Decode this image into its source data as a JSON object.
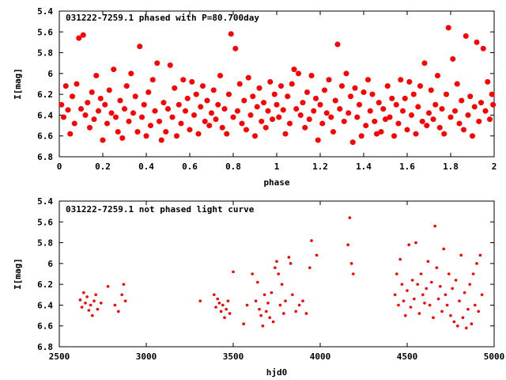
{
  "chart_data": [
    {
      "type": "scatter",
      "title": "031222-7259.1 phased with P=80.700day",
      "xlabel": "phase",
      "ylabel": "I[mag]",
      "xlim": [
        0,
        2
      ],
      "ylim": [
        6.8,
        5.4
      ],
      "y_inverted": true,
      "x_ticks": [
        "0",
        "0.2",
        "0.4",
        "0.6",
        "0.8",
        "1",
        "1.2",
        "1.4",
        "1.6",
        "1.8",
        "2"
      ],
      "y_ticks": [
        "5.4",
        "5.6",
        "5.8",
        "6",
        "6.2",
        "6.4",
        "6.6",
        "6.8"
      ],
      "marker": "star",
      "color": "#ff0000",
      "grid": false,
      "points": [
        [
          0.01,
          6.3
        ],
        [
          0.02,
          6.42
        ],
        [
          0.03,
          6.12
        ],
        [
          0.04,
          6.35
        ],
        [
          0.05,
          6.58
        ],
        [
          0.06,
          6.22
        ],
        [
          0.07,
          6.48
        ],
        [
          0.08,
          6.1
        ],
        [
          0.09,
          5.66
        ],
        [
          0.1,
          6.34
        ],
        [
          0.11,
          5.63
        ],
        [
          0.12,
          6.4
        ],
        [
          0.13,
          6.28
        ],
        [
          0.14,
          6.52
        ],
        [
          0.15,
          6.18
        ],
        [
          0.16,
          6.44
        ],
        [
          0.17,
          6.02
        ],
        [
          0.18,
          6.36
        ],
        [
          0.19,
          6.24
        ],
        [
          0.2,
          6.64
        ],
        [
          0.21,
          6.3
        ],
        [
          0.22,
          6.48
        ],
        [
          0.23,
          6.16
        ],
        [
          0.24,
          6.38
        ],
        [
          0.25,
          5.96
        ],
        [
          0.26,
          6.42
        ],
        [
          0.27,
          6.56
        ],
        [
          0.28,
          6.26
        ],
        [
          0.29,
          6.62
        ],
        [
          0.3,
          6.34
        ],
        [
          0.31,
          6.12
        ],
        [
          0.32,
          6.46
        ],
        [
          0.33,
          6.0
        ],
        [
          0.34,
          6.38
        ],
        [
          0.35,
          6.22
        ],
        [
          0.36,
          6.56
        ],
        [
          0.37,
          5.74
        ],
        [
          0.38,
          6.42
        ],
        [
          0.39,
          6.3
        ],
        [
          0.4,
          6.6
        ],
        [
          0.41,
          6.18
        ],
        [
          0.42,
          6.5
        ],
        [
          0.43,
          6.06
        ],
        [
          0.44,
          6.36
        ],
        [
          0.45,
          5.9
        ],
        [
          0.46,
          6.46
        ],
        [
          0.47,
          6.64
        ],
        [
          0.48,
          6.28
        ],
        [
          0.49,
          6.56
        ],
        [
          0.5,
          6.34
        ],
        [
          0.51,
          5.92
        ],
        [
          0.52,
          6.42
        ],
        [
          0.53,
          6.14
        ],
        [
          0.54,
          6.6
        ],
        [
          0.55,
          6.3
        ],
        [
          0.56,
          6.48
        ],
        [
          0.57,
          6.06
        ],
        [
          0.58,
          6.36
        ],
        [
          0.59,
          6.24
        ],
        [
          0.6,
          6.54
        ],
        [
          0.61,
          6.08
        ],
        [
          0.62,
          6.4
        ],
        [
          0.63,
          6.2
        ],
        [
          0.64,
          6.58
        ],
        [
          0.65,
          6.32
        ],
        [
          0.66,
          6.12
        ],
        [
          0.67,
          6.46
        ],
        [
          0.68,
          6.26
        ],
        [
          0.69,
          6.5
        ],
        [
          0.7,
          6.38
        ],
        [
          0.71,
          6.16
        ],
        [
          0.72,
          6.44
        ],
        [
          0.73,
          6.3
        ],
        [
          0.74,
          6.02
        ],
        [
          0.75,
          6.52
        ],
        [
          0.76,
          6.34
        ],
        [
          0.77,
          6.58
        ],
        [
          0.78,
          6.2
        ],
        [
          0.79,
          5.62
        ],
        [
          0.8,
          6.42
        ],
        [
          0.81,
          5.76
        ],
        [
          0.82,
          6.36
        ],
        [
          0.83,
          6.1
        ],
        [
          0.84,
          6.48
        ],
        [
          0.85,
          6.26
        ],
        [
          0.86,
          6.54
        ],
        [
          0.87,
          6.04
        ],
        [
          0.88,
          6.4
        ],
        [
          0.89,
          6.22
        ],
        [
          0.9,
          6.6
        ],
        [
          0.91,
          6.32
        ],
        [
          0.92,
          6.14
        ],
        [
          0.93,
          6.46
        ],
        [
          0.94,
          6.28
        ],
        [
          0.95,
          6.52
        ],
        [
          0.96,
          6.36
        ],
        [
          0.97,
          6.08
        ],
        [
          0.98,
          6.44
        ],
        [
          0.99,
          6.2
        ],
        [
          1.0,
          6.3
        ],
        [
          1.01,
          6.42
        ],
        [
          1.02,
          6.12
        ],
        [
          1.03,
          6.35
        ],
        [
          1.04,
          6.58
        ],
        [
          1.05,
          6.22
        ],
        [
          1.06,
          6.48
        ],
        [
          1.07,
          6.1
        ],
        [
          1.08,
          5.96
        ],
        [
          1.09,
          6.34
        ],
        [
          1.1,
          6.0
        ],
        [
          1.11,
          6.4
        ],
        [
          1.12,
          6.28
        ],
        [
          1.13,
          6.52
        ],
        [
          1.14,
          6.18
        ],
        [
          1.15,
          6.44
        ],
        [
          1.16,
          6.02
        ],
        [
          1.17,
          6.36
        ],
        [
          1.18,
          6.24
        ],
        [
          1.19,
          6.64
        ],
        [
          1.2,
          6.3
        ],
        [
          1.21,
          6.48
        ],
        [
          1.22,
          6.16
        ],
        [
          1.23,
          6.38
        ],
        [
          1.24,
          6.06
        ],
        [
          1.25,
          6.42
        ],
        [
          1.26,
          6.56
        ],
        [
          1.27,
          6.26
        ],
        [
          1.28,
          5.72
        ],
        [
          1.29,
          6.34
        ],
        [
          1.3,
          6.12
        ],
        [
          1.31,
          6.46
        ],
        [
          1.32,
          6.0
        ],
        [
          1.33,
          6.38
        ],
        [
          1.34,
          6.22
        ],
        [
          1.35,
          6.66
        ],
        [
          1.36,
          6.14
        ],
        [
          1.37,
          6.42
        ],
        [
          1.38,
          6.3
        ],
        [
          1.39,
          6.6
        ],
        [
          1.4,
          6.18
        ],
        [
          1.41,
          6.5
        ],
        [
          1.42,
          6.06
        ],
        [
          1.43,
          6.36
        ],
        [
          1.44,
          6.2
        ],
        [
          1.45,
          6.46
        ],
        [
          1.46,
          6.58
        ],
        [
          1.47,
          6.28
        ],
        [
          1.48,
          6.56
        ],
        [
          1.49,
          6.34
        ],
        [
          1.5,
          6.44
        ],
        [
          1.51,
          6.12
        ],
        [
          1.52,
          6.42
        ],
        [
          1.53,
          6.24
        ],
        [
          1.54,
          6.6
        ],
        [
          1.55,
          6.3
        ],
        [
          1.56,
          6.48
        ],
        [
          1.57,
          6.06
        ],
        [
          1.58,
          6.36
        ],
        [
          1.59,
          6.24
        ],
        [
          1.6,
          6.54
        ],
        [
          1.61,
          6.08
        ],
        [
          1.62,
          6.4
        ],
        [
          1.63,
          6.2
        ],
        [
          1.64,
          6.58
        ],
        [
          1.65,
          6.32
        ],
        [
          1.66,
          6.12
        ],
        [
          1.67,
          6.46
        ],
        [
          1.68,
          5.9
        ],
        [
          1.69,
          6.5
        ],
        [
          1.7,
          6.38
        ],
        [
          1.71,
          6.16
        ],
        [
          1.72,
          6.44
        ],
        [
          1.73,
          6.3
        ],
        [
          1.74,
          6.02
        ],
        [
          1.75,
          6.52
        ],
        [
          1.76,
          6.34
        ],
        [
          1.77,
          6.58
        ],
        [
          1.78,
          6.2
        ],
        [
          1.79,
          5.56
        ],
        [
          1.8,
          6.42
        ],
        [
          1.81,
          5.86
        ],
        [
          1.82,
          6.36
        ],
        [
          1.83,
          6.1
        ],
        [
          1.84,
          6.48
        ],
        [
          1.85,
          6.26
        ],
        [
          1.86,
          6.54
        ],
        [
          1.87,
          5.64
        ],
        [
          1.88,
          6.4
        ],
        [
          1.89,
          6.22
        ],
        [
          1.9,
          6.6
        ],
        [
          1.91,
          6.32
        ],
        [
          1.92,
          5.7
        ],
        [
          1.93,
          6.46
        ],
        [
          1.94,
          6.28
        ],
        [
          1.95,
          5.76
        ],
        [
          1.96,
          6.36
        ],
        [
          1.97,
          6.08
        ],
        [
          1.98,
          6.44
        ],
        [
          1.99,
          6.2
        ],
        [
          1.995,
          6.3
        ]
      ]
    },
    {
      "type": "scatter",
      "title": "031222-7259.1 not phased light curve",
      "xlabel": "hjd0",
      "ylabel": "I[mag]",
      "xlim": [
        2500,
        5000
      ],
      "ylim": [
        6.8,
        5.4
      ],
      "y_inverted": true,
      "x_ticks": [
        "2500",
        "3000",
        "3500",
        "4000",
        "4500",
        "5000"
      ],
      "y_ticks": [
        "5.4",
        "5.6",
        "5.8",
        "6",
        "6.2",
        "6.4",
        "6.6",
        "6.8"
      ],
      "marker": "dot",
      "color": "#ff0000",
      "grid": false,
      "points": [
        [
          2620,
          6.35
        ],
        [
          2630,
          6.42
        ],
        [
          2640,
          6.28
        ],
        [
          2650,
          6.38
        ],
        [
          2660,
          6.32
        ],
        [
          2670,
          6.45
        ],
        [
          2680,
          6.4
        ],
        [
          2690,
          6.5
        ],
        [
          2700,
          6.36
        ],
        [
          2710,
          6.3
        ],
        [
          2720,
          6.44
        ],
        [
          2740,
          6.38
        ],
        [
          2780,
          6.22
        ],
        [
          2820,
          6.4
        ],
        [
          2840,
          6.46
        ],
        [
          2860,
          6.3
        ],
        [
          2870,
          6.2
        ],
        [
          2880,
          6.36
        ],
        [
          3310,
          6.36
        ],
        [
          3390,
          6.3
        ],
        [
          3400,
          6.42
        ],
        [
          3410,
          6.34
        ],
        [
          3420,
          6.38
        ],
        [
          3430,
          6.46
        ],
        [
          3440,
          6.4
        ],
        [
          3450,
          6.52
        ],
        [
          3460,
          6.44
        ],
        [
          3470,
          6.36
        ],
        [
          3480,
          6.48
        ],
        [
          3500,
          6.08
        ],
        [
          3560,
          6.58
        ],
        [
          3580,
          6.4
        ],
        [
          3610,
          6.1
        ],
        [
          3630,
          6.36
        ],
        [
          3640,
          6.18
        ],
        [
          3650,
          6.44
        ],
        [
          3660,
          6.5
        ],
        [
          3670,
          6.6
        ],
        [
          3680,
          6.3
        ],
        [
          3690,
          6.46
        ],
        [
          3700,
          6.38
        ],
        [
          3710,
          6.52
        ],
        [
          3720,
          6.28
        ],
        [
          3730,
          6.56
        ],
        [
          3740,
          6.04
        ],
        [
          3750,
          5.98
        ],
        [
          3760,
          6.1
        ],
        [
          3770,
          6.4
        ],
        [
          3780,
          6.2
        ],
        [
          3790,
          6.48
        ],
        [
          3800,
          6.36
        ],
        [
          3820,
          5.94
        ],
        [
          3830,
          6.0
        ],
        [
          3840,
          6.3
        ],
        [
          3860,
          6.46
        ],
        [
          3880,
          6.4
        ],
        [
          3900,
          6.36
        ],
        [
          3920,
          6.48
        ],
        [
          3940,
          6.04
        ],
        [
          3950,
          5.78
        ],
        [
          3980,
          5.92
        ],
        [
          4160,
          5.82
        ],
        [
          4170,
          5.56
        ],
        [
          4180,
          6.0
        ],
        [
          4190,
          6.1
        ],
        [
          4430,
          6.3
        ],
        [
          4440,
          6.1
        ],
        [
          4450,
          6.4
        ],
        [
          4460,
          5.96
        ],
        [
          4470,
          6.2
        ],
        [
          4480,
          6.36
        ],
        [
          4490,
          6.5
        ],
        [
          4500,
          6.26
        ],
        [
          4510,
          5.82
        ],
        [
          4520,
          6.42
        ],
        [
          4530,
          6.16
        ],
        [
          4540,
          6.34
        ],
        [
          4550,
          5.8
        ],
        [
          4560,
          6.2
        ],
        [
          4570,
          6.48
        ],
        [
          4580,
          6.1
        ],
        [
          4590,
          6.3
        ],
        [
          4600,
          6.38
        ],
        [
          4610,
          6.24
        ],
        [
          4620,
          5.98
        ],
        [
          4630,
          6.4
        ],
        [
          4640,
          6.18
        ],
        [
          4650,
          6.52
        ],
        [
          4660,
          5.64
        ],
        [
          4670,
          6.04
        ],
        [
          4680,
          6.34
        ],
        [
          4690,
          6.22
        ],
        [
          4700,
          6.46
        ],
        [
          4710,
          5.86
        ],
        [
          4720,
          6.3
        ],
        [
          4730,
          6.4
        ],
        [
          4740,
          6.1
        ],
        [
          4750,
          6.5
        ],
        [
          4760,
          6.24
        ],
        [
          4770,
          6.56
        ],
        [
          4780,
          6.16
        ],
        [
          4790,
          6.6
        ],
        [
          4800,
          6.36
        ],
        [
          4810,
          5.92
        ],
        [
          4820,
          6.52
        ],
        [
          4830,
          6.28
        ],
        [
          4840,
          6.62
        ],
        [
          4850,
          6.44
        ],
        [
          4860,
          6.2
        ],
        [
          4870,
          6.58
        ],
        [
          4880,
          6.1
        ],
        [
          4890,
          6.4
        ],
        [
          4900,
          6.0
        ],
        [
          4910,
          6.46
        ],
        [
          4920,
          5.92
        ],
        [
          4930,
          6.3
        ]
      ]
    }
  ]
}
